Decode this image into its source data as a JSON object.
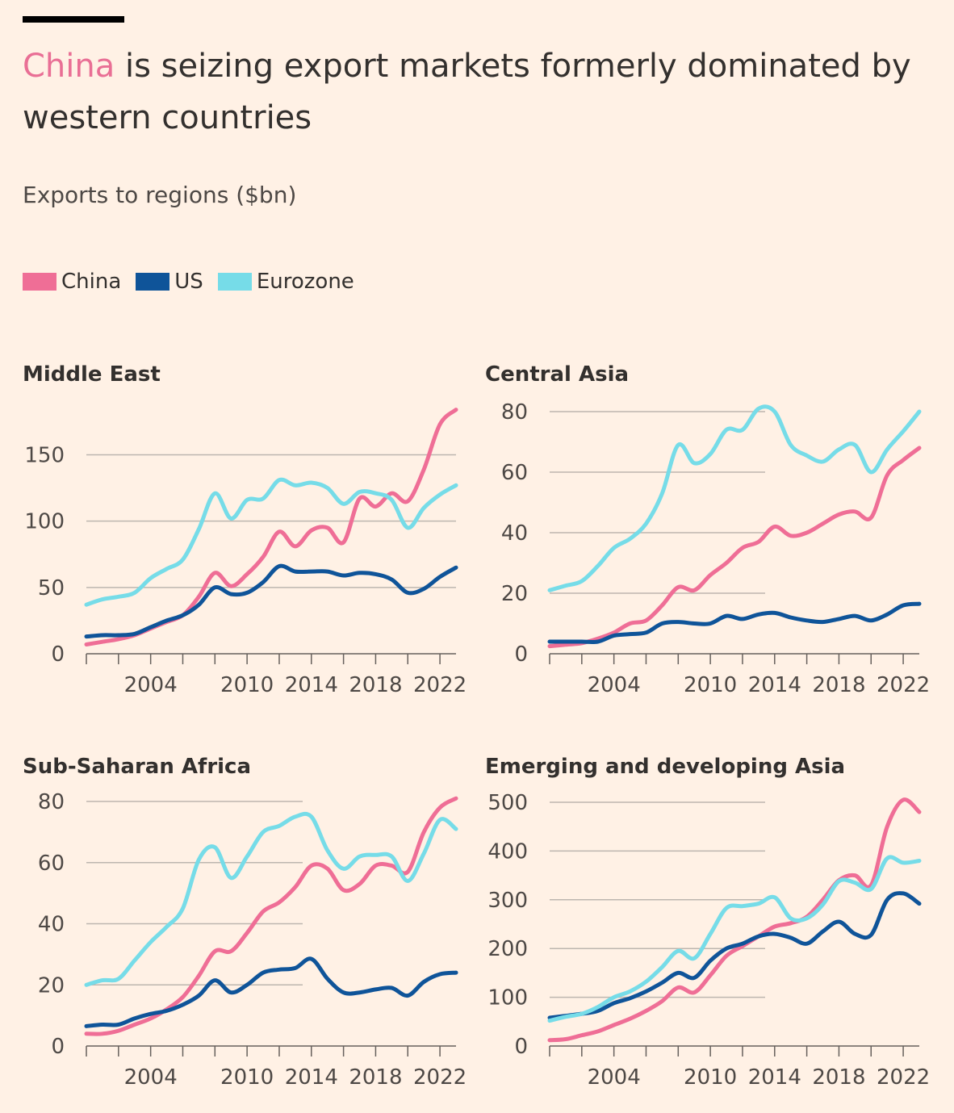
{
  "header": {
    "headline_accent": "China",
    "headline_rest": " is seizing export markets formerly dominated by western countries",
    "subtitle": "Exports to regions ($bn)"
  },
  "legend": [
    {
      "label": "China",
      "color": "#ef6e96"
    },
    {
      "label": "US",
      "color": "#0f5499"
    },
    {
      "label": "Eurozone",
      "color": "#76dce8"
    }
  ],
  "chart_data": [
    {
      "type": "line",
      "title": "Middle East",
      "xlim": [
        2000,
        2023
      ],
      "ylim": [
        0,
        185
      ],
      "yticks": [
        0,
        50,
        100,
        150
      ],
      "xticks": [
        2004,
        2010,
        2014,
        2018,
        2022
      ],
      "x": [
        2000,
        2001,
        2002,
        2003,
        2004,
        2005,
        2006,
        2007,
        2008,
        2009,
        2010,
        2011,
        2012,
        2013,
        2014,
        2015,
        2016,
        2017,
        2018,
        2019,
        2020,
        2021,
        2022,
        2023
      ],
      "series": [
        {
          "name": "China",
          "color": "#ef6e96",
          "values": [
            7,
            9,
            11,
            14,
            19,
            24,
            29,
            43,
            61,
            51,
            60,
            73,
            92,
            81,
            93,
            95,
            84,
            117,
            111,
            121,
            115,
            139,
            173,
            184
          ]
        },
        {
          "name": "US",
          "color": "#0f5499",
          "values": [
            13,
            14,
            14,
            15,
            20,
            25,
            29,
            37,
            50,
            45,
            46,
            54,
            66,
            62,
            62,
            62,
            59,
            61,
            60,
            56,
            46,
            49,
            58,
            65
          ]
        },
        {
          "name": "Eurozone",
          "color": "#76dce8",
          "values": [
            37,
            41,
            43,
            46,
            57,
            64,
            71,
            94,
            121,
            102,
            116,
            117,
            131,
            127,
            129,
            125,
            113,
            122,
            121,
            116,
            95,
            110,
            120,
            127
          ]
        }
      ]
    },
    {
      "type": "line",
      "title": "Central Asia",
      "xlim": [
        2000,
        2023
      ],
      "ylim": [
        0,
        80
      ],
      "yticks": [
        0,
        20,
        40,
        60,
        80
      ],
      "xticks": [
        2004,
        2010,
        2014,
        2018,
        2022
      ],
      "x": [
        2000,
        2001,
        2002,
        2003,
        2004,
        2005,
        2006,
        2007,
        2008,
        2009,
        2010,
        2011,
        2012,
        2013,
        2014,
        2015,
        2016,
        2017,
        2018,
        2019,
        2020,
        2021,
        2022,
        2023
      ],
      "series": [
        {
          "name": "China",
          "color": "#ef6e96",
          "values": [
            2.5,
            3,
            3.5,
            5,
            7,
            10,
            11,
            16,
            22,
            21,
            26,
            30,
            35,
            37,
            42,
            39,
            40,
            43,
            46,
            47,
            45,
            59,
            64,
            68
          ]
        },
        {
          "name": "US",
          "color": "#0f5499",
          "values": [
            4,
            4,
            4,
            4,
            6,
            6.5,
            7,
            10,
            10.5,
            10,
            10,
            12.5,
            11.5,
            13,
            13.5,
            12,
            11,
            10.5,
            11.5,
            12.5,
            11,
            13,
            16,
            16.5
          ]
        },
        {
          "name": "Eurozone",
          "color": "#76dce8",
          "values": [
            21,
            22.5,
            24,
            29,
            35,
            38,
            43,
            53,
            69,
            63,
            66,
            74,
            74,
            81,
            80,
            69,
            65.5,
            63.5,
            67.5,
            69,
            60,
            67.5,
            73.5,
            80
          ]
        }
      ]
    },
    {
      "type": "line",
      "title": "Sub-Saharan Africa",
      "xlim": [
        2000,
        2023
      ],
      "ylim": [
        0,
        80
      ],
      "yticks": [
        0,
        20,
        40,
        60,
        80
      ],
      "xticks": [
        2004,
        2010,
        2014,
        2018,
        2022
      ],
      "x": [
        2000,
        2001,
        2002,
        2003,
        2004,
        2005,
        2006,
        2007,
        2008,
        2009,
        2010,
        2011,
        2012,
        2013,
        2014,
        2015,
        2016,
        2017,
        2018,
        2019,
        2020,
        2021,
        2022,
        2023
      ],
      "series": [
        {
          "name": "China",
          "color": "#ef6e96",
          "values": [
            4,
            4,
            5,
            7,
            9,
            12,
            16,
            23,
            31,
            31,
            37,
            44,
            47,
            52,
            59,
            58,
            51,
            53,
            59,
            59,
            57,
            70,
            78,
            81
          ]
        },
        {
          "name": "US",
          "color": "#0f5499",
          "values": [
            6.5,
            7,
            7,
            9,
            10.5,
            11.5,
            13.5,
            16.5,
            21.5,
            17.5,
            20,
            24,
            25,
            25.5,
            28.5,
            22,
            17.5,
            17.5,
            18.5,
            19,
            16.5,
            21,
            23.5,
            24
          ]
        },
        {
          "name": "Eurozone",
          "color": "#76dce8",
          "values": [
            20,
            21.5,
            22,
            28,
            34,
            39,
            45,
            61,
            65,
            55,
            62,
            70,
            72,
            75,
            75,
            64,
            58,
            62,
            62.5,
            62,
            54,
            63,
            74,
            71
          ]
        }
      ]
    },
    {
      "type": "line",
      "title": "Emerging and developing Asia",
      "xlim": [
        2000,
        2023
      ],
      "ylim": [
        0,
        500
      ],
      "yticks": [
        0,
        100,
        200,
        300,
        400,
        500
      ],
      "xticks": [
        2004,
        2010,
        2014,
        2018,
        2022
      ],
      "x": [
        2000,
        2001,
        2002,
        2003,
        2004,
        2005,
        2006,
        2007,
        2008,
        2009,
        2010,
        2011,
        2012,
        2013,
        2014,
        2015,
        2016,
        2017,
        2018,
        2019,
        2020,
        2021,
        2022,
        2023
      ],
      "series": [
        {
          "name": "China",
          "color": "#ef6e96",
          "values": [
            12,
            14,
            22,
            30,
            43,
            56,
            72,
            92,
            120,
            110,
            145,
            185,
            205,
            225,
            245,
            252,
            265,
            300,
            340,
            350,
            330,
            450,
            505,
            480
          ]
        },
        {
          "name": "US",
          "color": "#0f5499",
          "values": [
            58,
            62,
            66,
            72,
            88,
            98,
            112,
            130,
            150,
            140,
            175,
            200,
            210,
            225,
            230,
            222,
            210,
            235,
            255,
            230,
            228,
            300,
            313,
            292
          ]
        },
        {
          "name": "Eurozone",
          "color": "#76dce8",
          "values": [
            52,
            60,
            66,
            80,
            100,
            112,
            132,
            162,
            195,
            180,
            230,
            283,
            287,
            292,
            305,
            262,
            262,
            290,
            338,
            335,
            322,
            385,
            376,
            380
          ]
        }
      ]
    }
  ]
}
